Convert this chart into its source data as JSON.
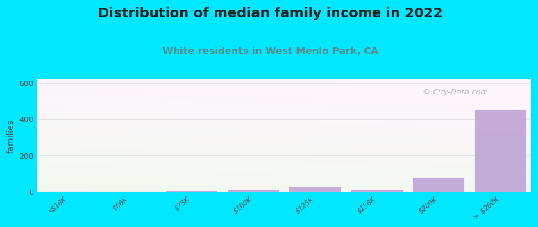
{
  "title": "Distribution of median family income in 2022",
  "subtitle": "White residents in West Menlo Park, CA",
  "watermark": "© City-Data.com",
  "categories": [
    "<$10K",
    "$60K",
    "$75K",
    "$100K",
    "$125K",
    "$150K",
    "$200K",
    "> $200K"
  ],
  "values": [
    5,
    0,
    10,
    18,
    28,
    18,
    80,
    455
  ],
  "bar_color": "#c2a8d8",
  "ylabel": "families",
  "ylim": [
    0,
    620
  ],
  "yticks": [
    0,
    200,
    400,
    600
  ],
  "background_color": "#00e8ff",
  "title_color": "#222222",
  "subtitle_color": "#5a8a8a",
  "title_fontsize": 14,
  "subtitle_fontsize": 10,
  "tick_color": "#555555",
  "grid_color": "#e0e0e0",
  "watermark_color": "#aaaaaa"
}
